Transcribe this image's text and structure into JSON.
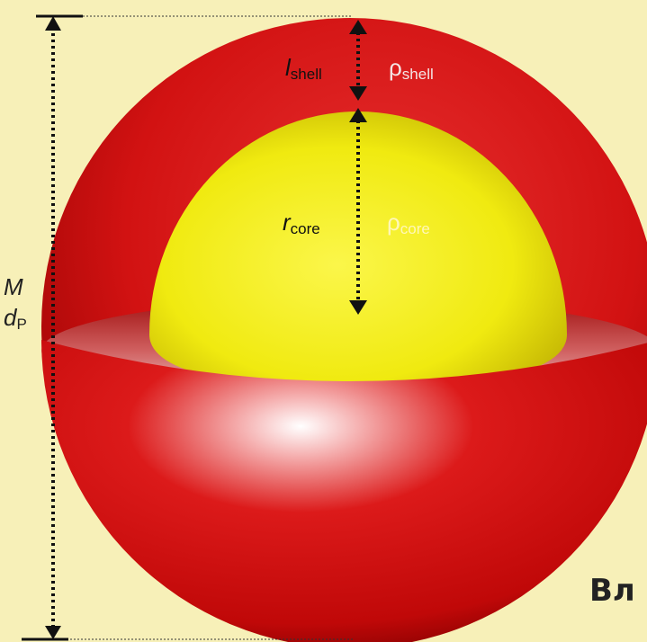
{
  "labels": {
    "shell_thickness": {
      "symbol": "l",
      "subscript": "shell"
    },
    "shell_density": {
      "symbol": "ρ",
      "subscript": "shell"
    },
    "core_radius": {
      "symbol": "r",
      "subscript": "core"
    },
    "core_density": {
      "symbol": "ρ",
      "subscript": "core"
    },
    "mass": "M",
    "diameter": {
      "symbol": "d",
      "subscript": "P"
    },
    "partial_text": "Вл"
  },
  "colors": {
    "background": "#f7f0b8",
    "shell": "#d81515",
    "shell_dark": "#7a0000",
    "core": "#f2ee12",
    "arrow": "#111111"
  }
}
